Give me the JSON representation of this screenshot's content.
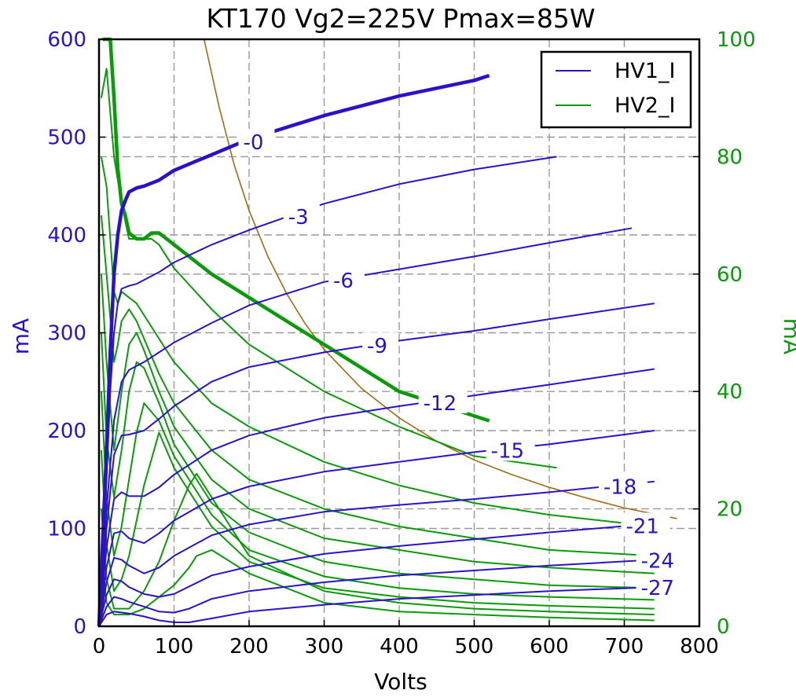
{
  "colors": {
    "hv1": "#2a12c8",
    "hv2": "#0a9a0a",
    "pmax": "#a56a10",
    "grid": "#999999"
  },
  "chart_data": {
    "type": "line",
    "title": "KT170 Vg2=225V Pmax=85W",
    "xlabel": "Volts",
    "ylabel_left": "mA",
    "ylabel_right": "mA",
    "xlim": [
      0,
      800
    ],
    "ylim_left": [
      0,
      600
    ],
    "ylim_right": [
      0,
      100
    ],
    "xticks": [
      "0",
      "100",
      "200",
      "300",
      "400",
      "500",
      "600",
      "700",
      "800"
    ],
    "yticks_left": [
      "0",
      "100",
      "200",
      "300",
      "400",
      "500",
      "600"
    ],
    "yticks_right": [
      "0",
      "20",
      "40",
      "60",
      "80",
      "100"
    ],
    "grid": true,
    "legend": {
      "placement": "top-right",
      "entries": [
        "HV1_I",
        "HV2_I"
      ]
    },
    "curve_labels": [
      "-0",
      "-3",
      "-6",
      "-9",
      "-12",
      "-15",
      "-18",
      "-21",
      "-24",
      "-27"
    ],
    "hv1_series": [
      {
        "name": "-0",
        "x": [
          0,
          10,
          15,
          20,
          25,
          30,
          35,
          40,
          50,
          60,
          80,
          100,
          150,
          200,
          300,
          400,
          500,
          520
        ],
        "y": [
          0,
          180,
          280,
          360,
          400,
          425,
          435,
          444,
          448,
          450,
          456,
          466,
          482,
          498,
          522,
          542,
          558,
          563
        ]
      },
      {
        "name": "-3",
        "x": [
          0,
          10,
          15,
          20,
          25,
          30,
          40,
          50,
          80,
          100,
          150,
          200,
          300,
          400,
          500,
          610
        ],
        "y": [
          0,
          150,
          240,
          300,
          330,
          345,
          348,
          350,
          362,
          372,
          390,
          405,
          432,
          452,
          467,
          480
        ]
      },
      {
        "name": "-6",
        "x": [
          0,
          10,
          20,
          30,
          40,
          60,
          80,
          100,
          150,
          200,
          300,
          400,
          500,
          600,
          710
        ],
        "y": [
          0,
          120,
          210,
          250,
          262,
          270,
          280,
          290,
          310,
          328,
          352,
          365,
          378,
          392,
          407
        ]
      },
      {
        "name": "-9",
        "x": [
          0,
          10,
          20,
          30,
          40,
          60,
          80,
          100,
          150,
          200,
          300,
          400,
          500,
          600,
          740
        ],
        "y": [
          0,
          100,
          175,
          195,
          196,
          200,
          212,
          225,
          250,
          265,
          280,
          292,
          302,
          314,
          330
        ]
      },
      {
        "name": "-12",
        "x": [
          0,
          10,
          20,
          30,
          40,
          60,
          80,
          100,
          150,
          200,
          300,
          400,
          500,
          600,
          740
        ],
        "y": [
          0,
          80,
          130,
          137,
          133,
          133,
          142,
          155,
          180,
          195,
          213,
          225,
          236,
          247,
          263
        ]
      },
      {
        "name": "-15",
        "x": [
          0,
          10,
          20,
          30,
          40,
          60,
          80,
          100,
          150,
          200,
          300,
          400,
          500,
          600,
          740
        ],
        "y": [
          0,
          60,
          95,
          97,
          90,
          85,
          95,
          108,
          130,
          143,
          158,
          168,
          178,
          186,
          200
        ]
      },
      {
        "name": "-18",
        "x": [
          0,
          10,
          20,
          30,
          40,
          60,
          80,
          100,
          150,
          200,
          300,
          400,
          500,
          600,
          740
        ],
        "y": [
          0,
          45,
          70,
          68,
          62,
          54,
          60,
          72,
          93,
          104,
          117,
          124,
          130,
          137,
          148
        ]
      },
      {
        "name": "-21",
        "x": [
          0,
          10,
          20,
          30,
          40,
          60,
          80,
          100,
          150,
          200,
          300,
          400,
          500,
          600,
          740
        ],
        "y": [
          0,
          32,
          48,
          46,
          40,
          33,
          30,
          33,
          52,
          61,
          74,
          82,
          89,
          96,
          105
        ]
      },
      {
        "name": "-24",
        "x": [
          0,
          10,
          20,
          30,
          40,
          60,
          80,
          100,
          120,
          150,
          200,
          300,
          400,
          500,
          600,
          740
        ],
        "y": [
          0,
          20,
          30,
          28,
          25,
          20,
          15,
          14,
          18,
          28,
          36,
          45,
          52,
          57,
          62,
          68
        ]
      },
      {
        "name": "-27",
        "x": [
          0,
          10,
          20,
          40,
          60,
          80,
          100,
          120,
          150,
          200,
          300,
          400,
          500,
          600,
          740
        ],
        "y": [
          0,
          12,
          15,
          13,
          10,
          6,
          4,
          4,
          8,
          15,
          22,
          28,
          32,
          36,
          40
        ]
      }
    ],
    "hv2_series": [
      {
        "name": "-0",
        "x": [
          5,
          10,
          15,
          20,
          25,
          30,
          35,
          40,
          50,
          60,
          70,
          80,
          100,
          150,
          200,
          250,
          300,
          400,
          520
        ],
        "y": [
          100,
          100,
          100,
          90,
          78,
          72,
          70,
          67,
          66,
          66,
          67,
          67,
          65,
          60,
          56,
          52,
          48,
          40,
          35
        ]
      },
      {
        "name": "-3",
        "x": [
          3,
          10,
          20,
          30,
          40,
          50,
          60,
          70,
          80,
          100,
          150,
          200,
          300,
          400,
          500,
          610
        ],
        "y": [
          90,
          95,
          80,
          72,
          66,
          66,
          66,
          66,
          65,
          61,
          54,
          48,
          40,
          34,
          29,
          27
        ]
      },
      {
        "name": "-6",
        "x": [
          3,
          10,
          20,
          25,
          30,
          40,
          50,
          60,
          80,
          100,
          150,
          200,
          300,
          400,
          500,
          600,
          740
        ],
        "y": [
          80,
          75,
          57,
          55,
          57,
          56,
          55,
          53,
          49,
          45,
          38,
          34,
          28,
          24,
          21,
          19,
          17
        ]
      },
      {
        "name": "-9",
        "x": [
          3,
          10,
          20,
          25,
          30,
          40,
          50,
          60,
          80,
          100,
          150,
          200,
          300,
          400,
          500,
          600,
          740
        ],
        "y": [
          70,
          60,
          45,
          48,
          52,
          54,
          52,
          49,
          43,
          38,
          30,
          25,
          20,
          17,
          15,
          13,
          12
        ]
      },
      {
        "name": "-12",
        "x": [
          3,
          10,
          20,
          30,
          40,
          50,
          60,
          80,
          100,
          150,
          200,
          300,
          400,
          500,
          600,
          740
        ],
        "y": [
          60,
          45,
          30,
          40,
          48,
          50,
          47,
          40,
          34,
          25,
          20,
          15,
          13,
          11,
          10,
          9
        ]
      },
      {
        "name": "-15",
        "x": [
          3,
          10,
          20,
          30,
          40,
          50,
          60,
          80,
          100,
          150,
          200,
          300,
          400,
          500,
          600,
          740
        ],
        "y": [
          50,
          32,
          22,
          30,
          40,
          45,
          44,
          38,
          31,
          21,
          16,
          11,
          9,
          8,
          7,
          6.5
        ]
      },
      {
        "name": "-18",
        "x": [
          3,
          10,
          20,
          30,
          40,
          50,
          60,
          80,
          100,
          150,
          200,
          300,
          400,
          500,
          600,
          740
        ],
        "y": [
          40,
          22,
          12,
          17,
          25,
          33,
          38,
          35,
          29,
          19,
          13,
          8.5,
          6.5,
          5.5,
          5,
          4.5
        ]
      },
      {
        "name": "-21",
        "x": [
          3,
          10,
          20,
          30,
          40,
          50,
          60,
          80,
          100,
          150,
          200,
          300,
          400,
          500,
          600,
          740
        ],
        "y": [
          30,
          14,
          6,
          8,
          12,
          18,
          24,
          33,
          27,
          17,
          11,
          6.5,
          5,
          4,
          3.5,
          3
        ]
      },
      {
        "name": "-24",
        "x": [
          3,
          10,
          20,
          40,
          60,
          80,
          100,
          120,
          130,
          150,
          200,
          300,
          400,
          500,
          600,
          740
        ],
        "y": [
          20,
          8,
          3,
          3,
          6,
          11,
          18,
          24,
          26,
          22,
          12,
          6,
          4,
          3,
          2.5,
          2
        ]
      },
      {
        "name": "-27",
        "x": [
          3,
          10,
          20,
          40,
          60,
          80,
          100,
          120,
          130,
          150,
          200,
          300,
          400,
          500,
          600,
          740
        ],
        "y": [
          12,
          4,
          2,
          2,
          3,
          5,
          7,
          10,
          12,
          13,
          9,
          4,
          2.5,
          2,
          1.5,
          1
        ]
      }
    ],
    "pmax_curve": {
      "x": [
        140,
        160,
        180,
        200,
        225,
        250,
        275,
        300,
        350,
        400,
        450,
        500,
        550,
        600,
        650,
        700,
        770
      ],
      "y": [
        607,
        531,
        472,
        425,
        378,
        340,
        309,
        283,
        243,
        213,
        189,
        170,
        155,
        142,
        131,
        121,
        110
      ]
    }
  }
}
